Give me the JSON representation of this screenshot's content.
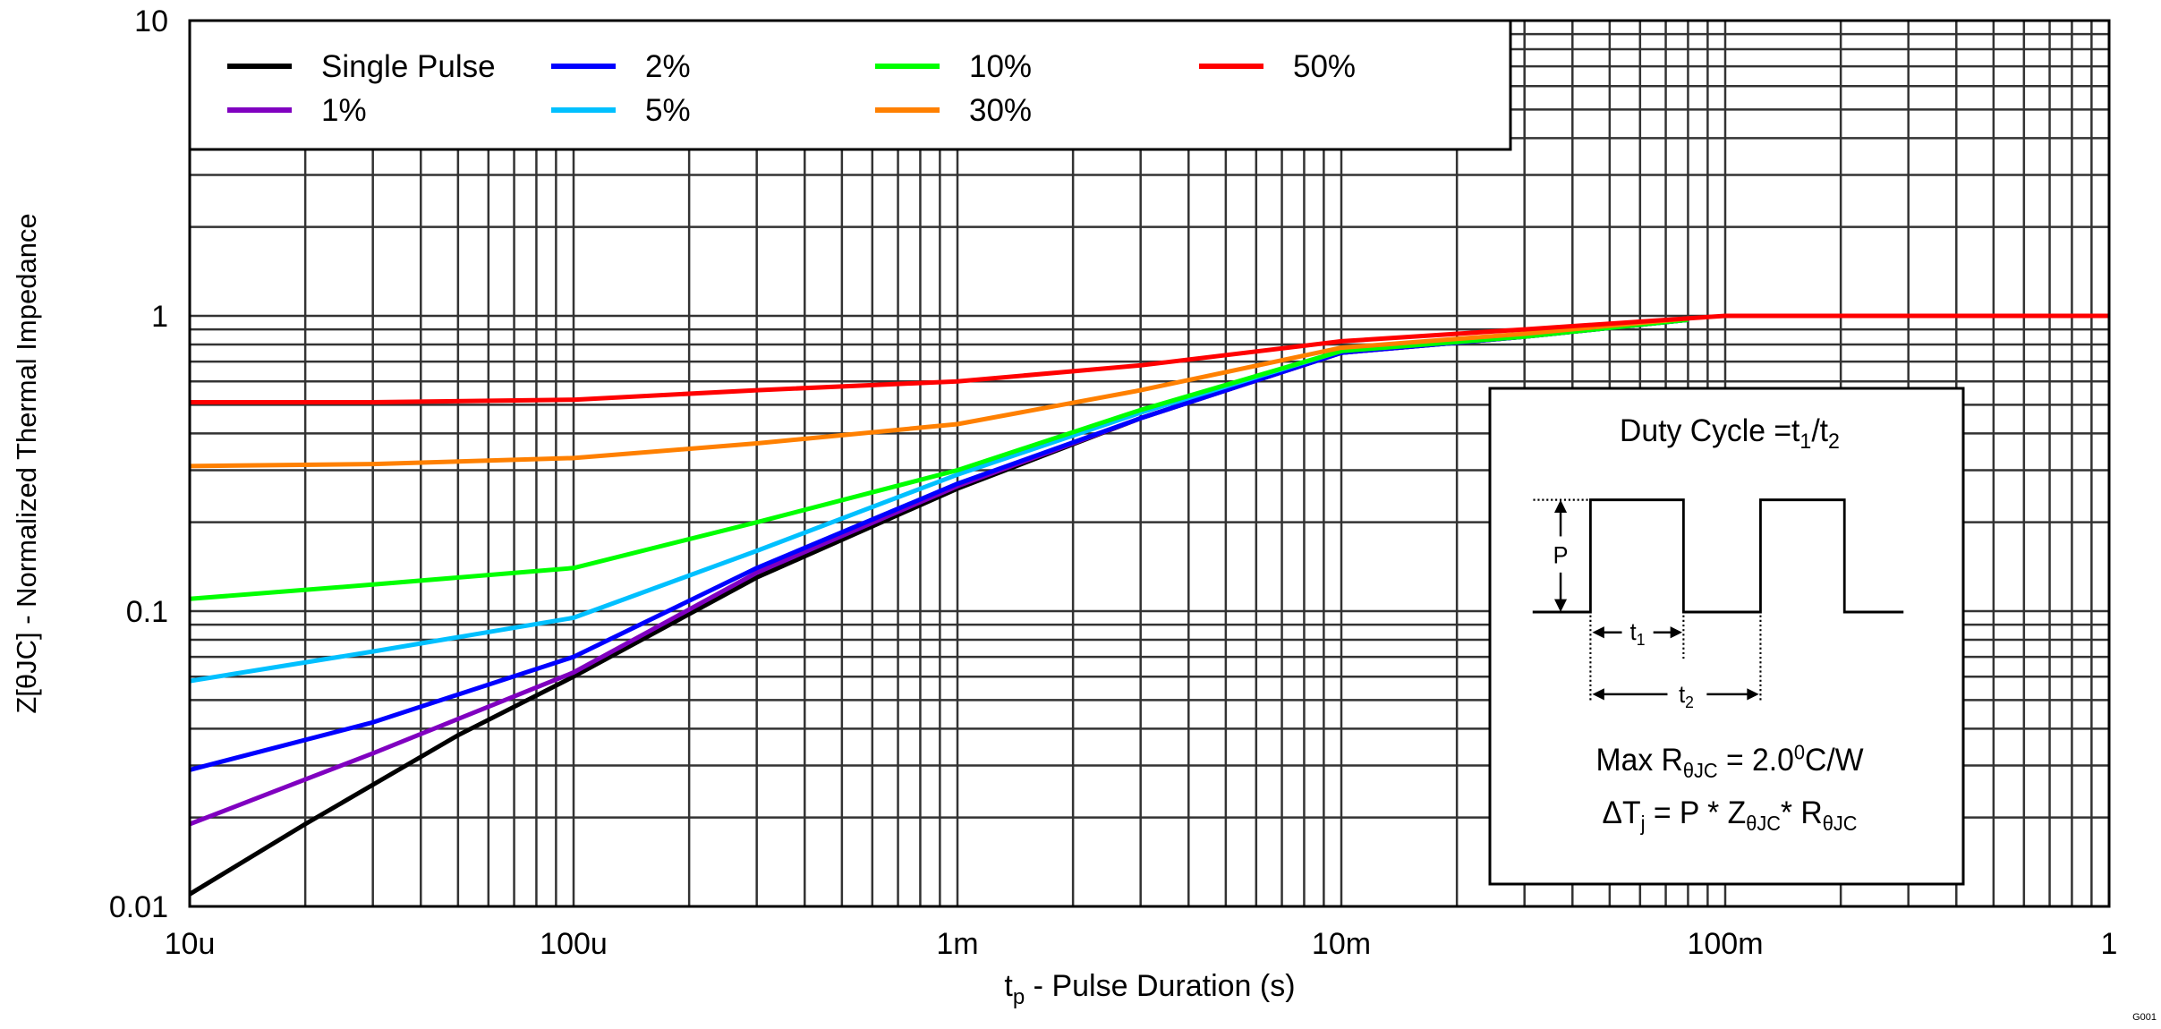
{
  "chart_data": {
    "type": "line",
    "title": "",
    "xlabel_main": "t",
    "xlabel_sub": "p",
    "xlabel_rest": " - Pulse Duration (s)",
    "ylabel": "Z[θJC] - Normalized Thermal Impedance",
    "x_scale": "log",
    "y_scale": "log",
    "xlim": [
      1e-05,
      1
    ],
    "ylim": [
      0.01,
      10
    ],
    "grid": true,
    "legend_position": "top-left",
    "x_ticks": [
      {
        "value": 1e-05,
        "label": "10u"
      },
      {
        "value": 0.0001,
        "label": "100u"
      },
      {
        "value": 0.001,
        "label": "1m"
      },
      {
        "value": 0.01,
        "label": "10m"
      },
      {
        "value": 0.1,
        "label": "100m"
      },
      {
        "value": 1,
        "label": "1"
      }
    ],
    "y_ticks": [
      {
        "value": 0.01,
        "label": "0.01"
      },
      {
        "value": 0.1,
        "label": "0.1"
      },
      {
        "value": 1,
        "label": "1"
      },
      {
        "value": 10,
        "label": "10"
      }
    ],
    "series": [
      {
        "name": "Single Pulse",
        "color": "#000000",
        "points": [
          [
            1e-05,
            0.011
          ],
          [
            2e-05,
            0.019
          ],
          [
            5e-05,
            0.038
          ],
          [
            0.0001,
            0.06
          ],
          [
            0.0003,
            0.13
          ],
          [
            0.001,
            0.26
          ],
          [
            0.003,
            0.45
          ],
          [
            0.01,
            0.75
          ],
          [
            0.03,
            0.85
          ],
          [
            0.08,
            0.97
          ]
        ]
      },
      {
        "name": "1%",
        "color": "#8000c0",
        "points": [
          [
            1e-05,
            0.019
          ],
          [
            3e-05,
            0.033
          ],
          [
            0.0001,
            0.062
          ],
          [
            0.0003,
            0.135
          ],
          [
            0.001,
            0.265
          ],
          [
            0.003,
            0.45
          ],
          [
            0.01,
            0.75
          ],
          [
            0.03,
            0.85
          ],
          [
            0.08,
            0.97
          ]
        ]
      },
      {
        "name": "2%",
        "color": "#0000ff",
        "points": [
          [
            1e-05,
            0.029
          ],
          [
            3e-05,
            0.042
          ],
          [
            0.0001,
            0.07
          ],
          [
            0.0003,
            0.14
          ],
          [
            0.001,
            0.27
          ],
          [
            0.003,
            0.45
          ],
          [
            0.01,
            0.75
          ],
          [
            0.03,
            0.85
          ],
          [
            0.08,
            0.97
          ]
        ]
      },
      {
        "name": "5%",
        "color": "#00c0ff",
        "points": [
          [
            1e-05,
            0.058
          ],
          [
            3e-05,
            0.073
          ],
          [
            0.0001,
            0.095
          ],
          [
            0.0003,
            0.16
          ],
          [
            0.001,
            0.29
          ],
          [
            0.003,
            0.47
          ],
          [
            0.01,
            0.76
          ],
          [
            0.03,
            0.86
          ],
          [
            0.08,
            0.97
          ]
        ]
      },
      {
        "name": "10%",
        "color": "#00ff00",
        "points": [
          [
            1e-05,
            0.11
          ],
          [
            3e-05,
            0.123
          ],
          [
            0.0001,
            0.14
          ],
          [
            0.0003,
            0.2
          ],
          [
            0.001,
            0.3
          ],
          [
            0.003,
            0.48
          ],
          [
            0.01,
            0.76
          ],
          [
            0.03,
            0.85
          ],
          [
            0.08,
            0.97
          ]
        ]
      },
      {
        "name": "30%",
        "color": "#ff8000",
        "points": [
          [
            1e-05,
            0.31
          ],
          [
            3e-05,
            0.315
          ],
          [
            0.0001,
            0.33
          ],
          [
            0.0003,
            0.37
          ],
          [
            0.001,
            0.43
          ],
          [
            0.003,
            0.56
          ],
          [
            0.01,
            0.78
          ],
          [
            0.03,
            0.87
          ],
          [
            0.08,
            0.98
          ]
        ]
      },
      {
        "name": "50%",
        "color": "#ff0000",
        "points": [
          [
            1e-05,
            0.51
          ],
          [
            3e-05,
            0.51
          ],
          [
            0.0001,
            0.52
          ],
          [
            0.0003,
            0.56
          ],
          [
            0.001,
            0.6
          ],
          [
            0.003,
            0.68
          ],
          [
            0.01,
            0.82
          ],
          [
            0.03,
            0.9
          ],
          [
            0.1,
            1.0
          ],
          [
            1,
            1.0
          ]
        ]
      }
    ],
    "inset": {
      "title": [
        "Duty Cycle =t",
        "1",
        "/t",
        "2"
      ],
      "p_label": "P",
      "t1_label": [
        "t",
        "1"
      ],
      "t2_label": [
        "t",
        "2"
      ],
      "rth_line": [
        "Max R",
        "θJC",
        " = 2.0",
        "0",
        "C/W"
      ],
      "dtj_line": [
        "ΔT",
        "j",
        " = P * Z",
        "θJC",
        "* R",
        "θJC"
      ]
    },
    "figure_id": "G001"
  }
}
